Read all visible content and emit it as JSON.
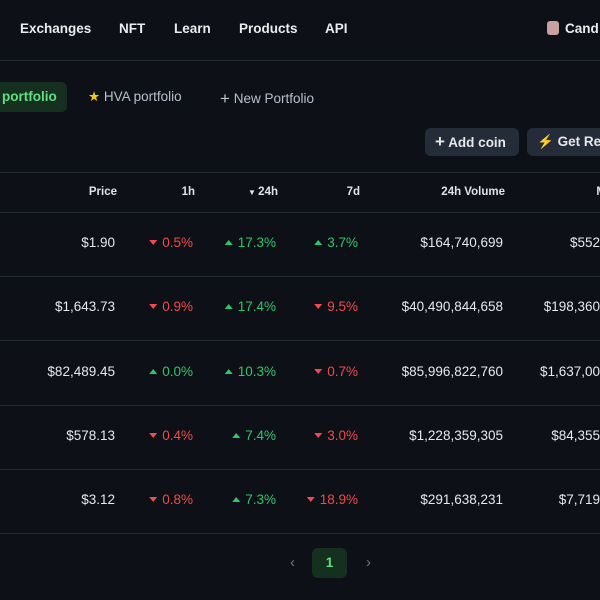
{
  "nav": {
    "items": [
      "Exchanges",
      "NFT",
      "Learn",
      "Products",
      "API"
    ],
    "user": "Cand"
  },
  "tabs": {
    "active": "portfolio",
    "items": [
      "HVA portfolio",
      "New Portfolio"
    ]
  },
  "buttons": {
    "add_coin": "Add coin",
    "recommend": "Get Rec"
  },
  "table": {
    "headers": [
      "Price",
      "1h",
      "24h",
      "7d",
      "24h Volume",
      "M"
    ],
    "rows": [
      {
        "price": "$1.90",
        "h1": {
          "text": "0.5%",
          "direction": "down"
        },
        "h24": {
          "text": "17.3%",
          "direction": "up"
        },
        "d7": {
          "text": "3.7%",
          "direction": "up"
        },
        "volume": "$164,740,699",
        "mcap": "$552"
      },
      {
        "price": "$1,643.73",
        "h1": {
          "text": "0.9%",
          "direction": "down"
        },
        "h24": {
          "text": "17.4%",
          "direction": "up"
        },
        "d7": {
          "text": "9.5%",
          "direction": "down"
        },
        "volume": "$40,490,844,658",
        "mcap": "$198,360"
      },
      {
        "price": "$82,489.45",
        "h1": {
          "text": "0.0%",
          "direction": "up"
        },
        "h24": {
          "text": "10.3%",
          "direction": "up"
        },
        "d7": {
          "text": "0.7%",
          "direction": "down"
        },
        "volume": "$85,996,822,760",
        "mcap": "$1,637,00"
      },
      {
        "price": "$578.13",
        "h1": {
          "text": "0.4%",
          "direction": "down"
        },
        "h24": {
          "text": "7.4%",
          "direction": "up"
        },
        "d7": {
          "text": "3.0%",
          "direction": "down"
        },
        "volume": "$1,228,359,305",
        "mcap": "$84,355"
      },
      {
        "price": "$3.12",
        "h1": {
          "text": "0.8%",
          "direction": "down"
        },
        "h24": {
          "text": "7.3%",
          "direction": "up"
        },
        "d7": {
          "text": "18.9%",
          "direction": "down"
        },
        "volume": "$291,638,231",
        "mcap": "$7,719"
      }
    ]
  },
  "pagination": {
    "current": "1"
  }
}
